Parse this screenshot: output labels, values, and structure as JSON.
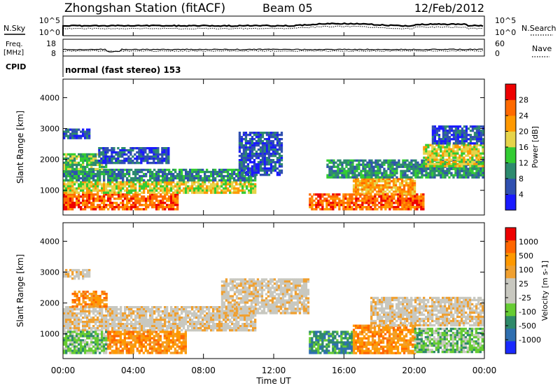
{
  "header": {
    "station": "Zhongshan Station (fitACF)",
    "beam": "Beam 05",
    "date": "12/Feb/2012"
  },
  "top_panels": {
    "nsky_label": "N.Sky",
    "nsky_ticks": [
      "10^5",
      "10^0"
    ],
    "nsearch_label": "N.Search",
    "nsearch_ticks": [
      "10^5",
      "10^0"
    ],
    "freq_label_1": "Freq.",
    "freq_label_2": "[MHz]",
    "freq_ticks": [
      "18",
      "8"
    ],
    "nave_label": "Nave",
    "nave_ticks": [
      "60",
      "0"
    ],
    "cpid_label": "CPID",
    "cpid_text": "normal (fast stereo) 153"
  },
  "chart_data": [
    {
      "type": "heatmap",
      "name": "power",
      "ylabel": "Slant Range [km]",
      "yticks": [
        "1000",
        "2000",
        "3000",
        "4000"
      ],
      "ylim": [
        200,
        4600
      ],
      "xlim": [
        0,
        24
      ],
      "colorbar_label": "Power [dB]",
      "colorbar_ticks": [
        "4",
        "8",
        "12",
        "16",
        "20",
        "24",
        "28"
      ],
      "colors": [
        "#1a1aff",
        "#3050b0",
        "#2d8a6e",
        "#33cc33",
        "#e6d44a",
        "#ff9900",
        "#ff6a00",
        "#ee0000"
      ],
      "regions": [
        {
          "t0": 0.0,
          "t1": 6.5,
          "r0": 400,
          "r1": 900,
          "level": 6
        },
        {
          "t0": 0.0,
          "t1": 11.0,
          "r0": 900,
          "r1": 1300,
          "level": 4
        },
        {
          "t0": 0.0,
          "t1": 11.0,
          "r0": 1300,
          "r1": 1700,
          "level": 2
        },
        {
          "t0": 0.0,
          "t1": 2.5,
          "r0": 1700,
          "r1": 2200,
          "level": 3
        },
        {
          "t0": 0.0,
          "t1": 1.5,
          "r0": 2700,
          "r1": 3000,
          "level": 1
        },
        {
          "t0": 2.0,
          "t1": 6.0,
          "r0": 1900,
          "r1": 2400,
          "level": 1
        },
        {
          "t0": 10.0,
          "t1": 12.5,
          "r0": 1500,
          "r1": 2900,
          "level": 1
        },
        {
          "t0": 14.0,
          "t1": 20.5,
          "r0": 400,
          "r1": 900,
          "level": 6
        },
        {
          "t0": 16.5,
          "t1": 20.0,
          "r0": 900,
          "r1": 1400,
          "level": 5
        },
        {
          "t0": 15.0,
          "t1": 24.0,
          "r0": 1400,
          "r1": 2000,
          "level": 2
        },
        {
          "t0": 20.5,
          "t1": 24.0,
          "r0": 1800,
          "r1": 2500,
          "level": 4
        },
        {
          "t0": 21.0,
          "t1": 24.0,
          "r0": 2500,
          "r1": 3100,
          "level": 1
        }
      ]
    },
    {
      "type": "heatmap",
      "name": "velocity",
      "ylabel": "Slant Range [km]",
      "yticks": [
        "1000",
        "2000",
        "3000",
        "4000"
      ],
      "ylim": [
        200,
        4600
      ],
      "xlim": [
        0,
        24
      ],
      "colorbar_label": "Velocity [m s-1]",
      "colorbar_ticks": [
        "1000",
        "500",
        "100",
        "25",
        "-25",
        "-100",
        "-500",
        "-1000"
      ],
      "colors": [
        "#ee0000",
        "#ff6600",
        "#ff9900",
        "#f0a030",
        "#c8c8c0",
        "#c8c8c0",
        "#66cc33",
        "#2f8a6a",
        "#2f6fb0",
        "#1a2aff"
      ],
      "regions": [
        {
          "t0": 0.0,
          "t1": 11.0,
          "r0": 1100,
          "r1": 1900,
          "level": 4
        },
        {
          "t0": 2.5,
          "t1": 7.0,
          "r0": 400,
          "r1": 1100,
          "level": 2
        },
        {
          "t0": 0.0,
          "t1": 2.5,
          "r0": 400,
          "r1": 1100,
          "level": 6
        },
        {
          "t0": 0.5,
          "t1": 2.5,
          "r0": 1900,
          "r1": 2400,
          "level": 2
        },
        {
          "t0": 9.0,
          "t1": 14.0,
          "r0": 1700,
          "r1": 2800,
          "level": 4
        },
        {
          "t0": 14.0,
          "t1": 16.5,
          "r0": 400,
          "r1": 1100,
          "level": 7
        },
        {
          "t0": 16.5,
          "t1": 20.0,
          "r0": 400,
          "r1": 1300,
          "level": 2
        },
        {
          "t0": 17.5,
          "t1": 24.0,
          "r0": 1300,
          "r1": 2200,
          "level": 4
        },
        {
          "t0": 20.0,
          "t1": 24.0,
          "r0": 400,
          "r1": 1200,
          "level": 6
        },
        {
          "t0": 0.0,
          "t1": 1.5,
          "r0": 2800,
          "r1": 3100,
          "level": 4
        }
      ]
    }
  ],
  "xaxis": {
    "label": "Time UT",
    "ticks": [
      "00:00",
      "04:00",
      "08:00",
      "12:00",
      "16:00",
      "20:00",
      "00:00"
    ]
  }
}
